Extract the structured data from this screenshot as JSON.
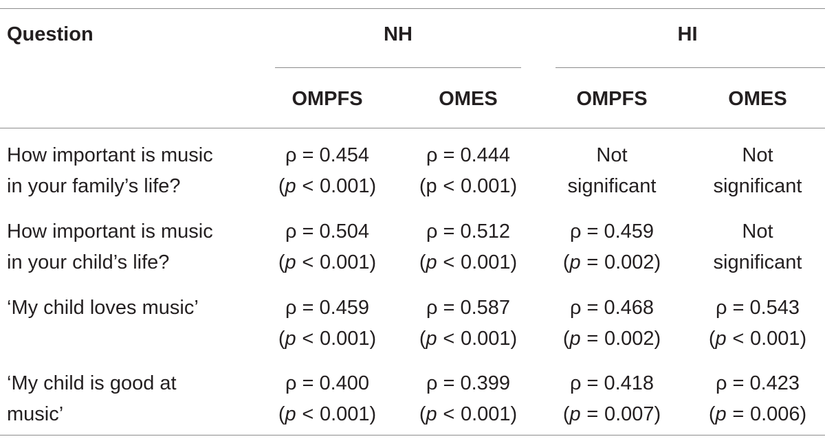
{
  "table": {
    "header": {
      "question": "Question",
      "groups": [
        "NH",
        "HI"
      ],
      "subcolumns": [
        "OMPFS",
        "OMES",
        "OMPFS",
        "OMES"
      ]
    },
    "rows": [
      {
        "question_lines": [
          "How important is music",
          "in your family’s life?"
        ],
        "cells": [
          {
            "lines": [
              "ρ = 0.454"
            ],
            "p": {
              "sym": "p",
              "op": "<",
              "val": "0.001)"
            },
            "italic": true
          },
          {
            "lines": [
              "ρ = 0.444"
            ],
            "p": {
              "sym": "p",
              "op": "<",
              "val": "0.001)"
            },
            "italic": false
          },
          {
            "lines": [
              "Not",
              "significant"
            ],
            "p": null
          },
          {
            "lines": [
              "Not",
              "significant"
            ],
            "p": null
          }
        ]
      },
      {
        "question_lines": [
          "How important is music",
          "in your child’s life?"
        ],
        "cells": [
          {
            "lines": [
              "ρ = 0.504"
            ],
            "p": {
              "sym": "p",
              "op": "<",
              "val": "0.001)"
            },
            "italic": true
          },
          {
            "lines": [
              "ρ = 0.512"
            ],
            "p": {
              "sym": "p",
              "op": "<",
              "val": "0.001)"
            },
            "italic": true
          },
          {
            "lines": [
              "ρ = 0.459"
            ],
            "p": {
              "sym": "p",
              "op": "=",
              "val": "0.002)"
            },
            "italic": true
          },
          {
            "lines": [
              "Not",
              "significant"
            ],
            "p": null
          }
        ]
      },
      {
        "question_lines": [
          "‘My child loves music’"
        ],
        "cells": [
          {
            "lines": [
              "ρ = 0.459"
            ],
            "p": {
              "sym": "p",
              "op": "<",
              "val": "0.001)"
            },
            "italic": true
          },
          {
            "lines": [
              "ρ = 0.587"
            ],
            "p": {
              "sym": "p",
              "op": "<",
              "val": "0.001)"
            },
            "italic": true
          },
          {
            "lines": [
              "ρ = 0.468"
            ],
            "p": {
              "sym": "p",
              "op": "=",
              "val": "0.002)"
            },
            "italic": true
          },
          {
            "lines": [
              "ρ = 0.543"
            ],
            "p": {
              "sym": "p",
              "op": "<",
              "val": "0.001)"
            },
            "italic": true
          }
        ]
      },
      {
        "question_lines": [
          "‘My child is good at",
          "music’"
        ],
        "cells": [
          {
            "lines": [
              "ρ = 0.400"
            ],
            "p": {
              "sym": "p",
              "op": "<",
              "val": "0.001)"
            },
            "italic": true
          },
          {
            "lines": [
              "ρ = 0.399"
            ],
            "p": {
              "sym": "p",
              "op": "<",
              "val": "0.001)"
            },
            "italic": true
          },
          {
            "lines": [
              "ρ = 0.418"
            ],
            "p": {
              "sym": "p",
              "op": "=",
              "val": "0.007)"
            },
            "italic": true
          },
          {
            "lines": [
              "ρ = 0.423"
            ],
            "p": {
              "sym": "p",
              "op": "=",
              "val": "0.006)"
            },
            "italic": true
          }
        ]
      }
    ]
  }
}
